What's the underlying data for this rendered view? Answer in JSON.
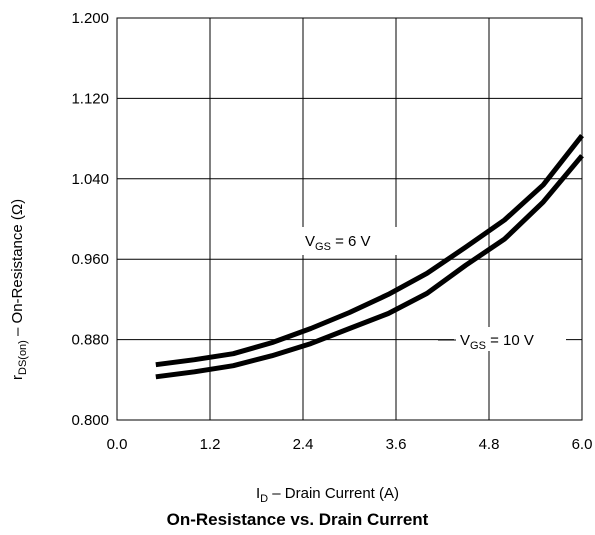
{
  "chart_data": {
    "type": "line",
    "title": "On-Resistance vs. Drain Current",
    "xlabel": {
      "main": "I",
      "sub": "D",
      "rest": " – Drain Current (A)"
    },
    "ylabel": {
      "main": "r",
      "sub": "DS(on)",
      "rest": " – On-Resistance (Ω)"
    },
    "xlim": [
      0.0,
      6.0
    ],
    "ylim": [
      0.8,
      1.2
    ],
    "x_ticks": [
      "0.0",
      "1.2",
      "2.4",
      "3.6",
      "4.8",
      "6.0"
    ],
    "y_ticks": [
      "0.800",
      "0.880",
      "0.960",
      "1.040",
      "1.120",
      "1.200"
    ],
    "grid": true,
    "series": [
      {
        "name": "VGS = 6 V",
        "label": {
          "main": "V",
          "sub": "GS",
          "rest": " = 6 V"
        },
        "x": [
          0.5,
          1.0,
          1.5,
          2.0,
          2.5,
          3.0,
          3.5,
          4.0,
          4.5,
          5.0,
          5.5,
          6.0
        ],
        "y": [
          0.855,
          0.86,
          0.866,
          0.877,
          0.891,
          0.907,
          0.925,
          0.946,
          0.972,
          0.999,
          1.034,
          1.083
        ]
      },
      {
        "name": "VGS = 10 V",
        "label": {
          "main": "V",
          "sub": "GS",
          "rest": " = 10 V"
        },
        "x": [
          0.5,
          1.0,
          1.5,
          2.0,
          2.5,
          3.0,
          3.5,
          4.0,
          4.5,
          5.0,
          5.5,
          6.0
        ],
        "y": [
          0.843,
          0.848,
          0.854,
          0.864,
          0.876,
          0.891,
          0.906,
          0.926,
          0.954,
          0.98,
          1.017,
          1.063
        ]
      }
    ]
  }
}
